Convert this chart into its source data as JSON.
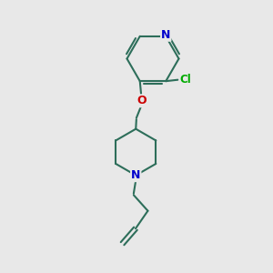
{
  "bg_color": "#e8e8e8",
  "bond_color": "#2d6e5a",
  "N_color": "#0000cc",
  "O_color": "#cc0000",
  "Cl_color": "#00aa00",
  "line_width": 1.5,
  "figsize": [
    3.0,
    3.0
  ],
  "dpi": 100,
  "xlim": [
    0,
    10
  ],
  "ylim": [
    0,
    10
  ]
}
